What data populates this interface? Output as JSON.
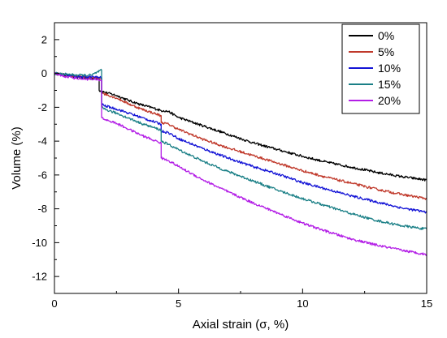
{
  "chart_data": {
    "type": "line",
    "title": "",
    "xlabel": "Axial strain (σ, %)",
    "ylabel": "Volume (%)",
    "xlim": [
      0,
      15
    ],
    "ylim": [
      -13,
      3
    ],
    "x_ticks": [
      0,
      5,
      10,
      15
    ],
    "x_tick_labels": [
      "0",
      "5",
      "10",
      "15"
    ],
    "y_ticks": [
      2,
      0,
      -2,
      -4,
      -6,
      -8,
      -10,
      -12
    ],
    "y_tick_labels": [
      "2",
      "0",
      "-2",
      "-4",
      "-6",
      "-8",
      "-10",
      "-12"
    ],
    "grid": false,
    "legend_position": "top-right",
    "series": [
      {
        "name": "0%",
        "color": "#000000",
        "points": [
          [
            0,
            0
          ],
          [
            0.5,
            -0.1
          ],
          [
            1.0,
            -0.25
          ],
          [
            1.5,
            -0.3
          ],
          [
            1.8,
            -0.25
          ],
          [
            1.8,
            -1.0
          ],
          [
            2.0,
            -1.1
          ],
          [
            2.5,
            -1.3
          ],
          [
            3.0,
            -1.6
          ],
          [
            3.5,
            -1.85
          ],
          [
            4.0,
            -2.05
          ],
          [
            4.3,
            -2.2
          ],
          [
            4.4,
            -2.2
          ],
          [
            4.6,
            -2.25
          ],
          [
            5.0,
            -2.6
          ],
          [
            6.0,
            -3.1
          ],
          [
            7.0,
            -3.6
          ],
          [
            8.0,
            -4.1
          ],
          [
            9.0,
            -4.5
          ],
          [
            10.0,
            -4.9
          ],
          [
            11.0,
            -5.25
          ],
          [
            12.0,
            -5.55
          ],
          [
            13.0,
            -5.85
          ],
          [
            14.0,
            -6.1
          ],
          [
            15.0,
            -6.3
          ]
        ]
      },
      {
        "name": "5%",
        "color": "#c0392b",
        "points": [
          [
            0,
            0
          ],
          [
            0.5,
            -0.1
          ],
          [
            1.0,
            -0.2
          ],
          [
            1.5,
            -0.25
          ],
          [
            1.9,
            -0.3
          ],
          [
            1.9,
            -1.1
          ],
          [
            2.0,
            -1.2
          ],
          [
            2.5,
            -1.45
          ],
          [
            3.0,
            -1.8
          ],
          [
            3.5,
            -2.1
          ],
          [
            4.0,
            -2.35
          ],
          [
            4.3,
            -2.5
          ],
          [
            4.3,
            -2.9
          ],
          [
            4.6,
            -3.0
          ],
          [
            5.0,
            -3.3
          ],
          [
            6.0,
            -3.9
          ],
          [
            7.0,
            -4.4
          ],
          [
            8.0,
            -4.85
          ],
          [
            9.0,
            -5.3
          ],
          [
            10.0,
            -5.75
          ],
          [
            11.0,
            -6.15
          ],
          [
            12.0,
            -6.5
          ],
          [
            13.0,
            -6.85
          ],
          [
            14.0,
            -7.15
          ],
          [
            15.0,
            -7.4
          ]
        ]
      },
      {
        "name": "10%",
        "color": "#1414d6",
        "points": [
          [
            0,
            0
          ],
          [
            0.5,
            -0.1
          ],
          [
            1.0,
            -0.2
          ],
          [
            1.5,
            -0.2
          ],
          [
            1.9,
            -0.25
          ],
          [
            1.9,
            -1.8
          ],
          [
            2.0,
            -1.9
          ],
          [
            2.5,
            -2.1
          ],
          [
            3.0,
            -2.35
          ],
          [
            3.5,
            -2.6
          ],
          [
            4.0,
            -2.85
          ],
          [
            4.3,
            -3.0
          ],
          [
            4.3,
            -3.4
          ],
          [
            4.6,
            -3.5
          ],
          [
            5.0,
            -3.85
          ],
          [
            6.0,
            -4.45
          ],
          [
            7.0,
            -5.0
          ],
          [
            8.0,
            -5.5
          ],
          [
            9.0,
            -5.95
          ],
          [
            10.0,
            -6.45
          ],
          [
            11.0,
            -6.85
          ],
          [
            12.0,
            -7.25
          ],
          [
            13.0,
            -7.6
          ],
          [
            14.0,
            -7.95
          ],
          [
            15.0,
            -8.2
          ]
        ]
      },
      {
        "name": "15%",
        "color": "#1a7f86",
        "points": [
          [
            0,
            0
          ],
          [
            0.5,
            -0.05
          ],
          [
            1.0,
            -0.1
          ],
          [
            1.5,
            -0.1
          ],
          [
            1.9,
            0.2
          ],
          [
            1.9,
            -2.0
          ],
          [
            2.0,
            -2.1
          ],
          [
            2.5,
            -2.35
          ],
          [
            3.0,
            -2.65
          ],
          [
            3.5,
            -2.95
          ],
          [
            4.0,
            -3.2
          ],
          [
            4.3,
            -3.35
          ],
          [
            4.3,
            -4.0
          ],
          [
            4.6,
            -4.2
          ],
          [
            5.0,
            -4.5
          ],
          [
            6.0,
            -5.2
          ],
          [
            7.0,
            -5.8
          ],
          [
            8.0,
            -6.35
          ],
          [
            9.0,
            -6.9
          ],
          [
            10.0,
            -7.4
          ],
          [
            11.0,
            -7.85
          ],
          [
            12.0,
            -8.3
          ],
          [
            13.0,
            -8.7
          ],
          [
            14.0,
            -9.0
          ],
          [
            15.0,
            -9.2
          ]
        ]
      },
      {
        "name": "20%",
        "color": "#b31ee6",
        "points": [
          [
            0,
            0
          ],
          [
            0.5,
            -0.2
          ],
          [
            1.0,
            -0.3
          ],
          [
            1.5,
            -0.35
          ],
          [
            1.9,
            -0.4
          ],
          [
            1.9,
            -2.6
          ],
          [
            2.0,
            -2.7
          ],
          [
            2.5,
            -2.95
          ],
          [
            3.0,
            -3.3
          ],
          [
            3.5,
            -3.65
          ],
          [
            4.0,
            -3.95
          ],
          [
            4.3,
            -4.1
          ],
          [
            4.3,
            -5.0
          ],
          [
            4.6,
            -5.15
          ],
          [
            5.0,
            -5.5
          ],
          [
            6.0,
            -6.3
          ],
          [
            7.0,
            -7.0
          ],
          [
            8.0,
            -7.65
          ],
          [
            9.0,
            -8.25
          ],
          [
            10.0,
            -8.85
          ],
          [
            11.0,
            -9.35
          ],
          [
            12.0,
            -9.8
          ],
          [
            13.0,
            -10.15
          ],
          [
            14.0,
            -10.45
          ],
          [
            15.0,
            -10.7
          ]
        ]
      }
    ]
  }
}
